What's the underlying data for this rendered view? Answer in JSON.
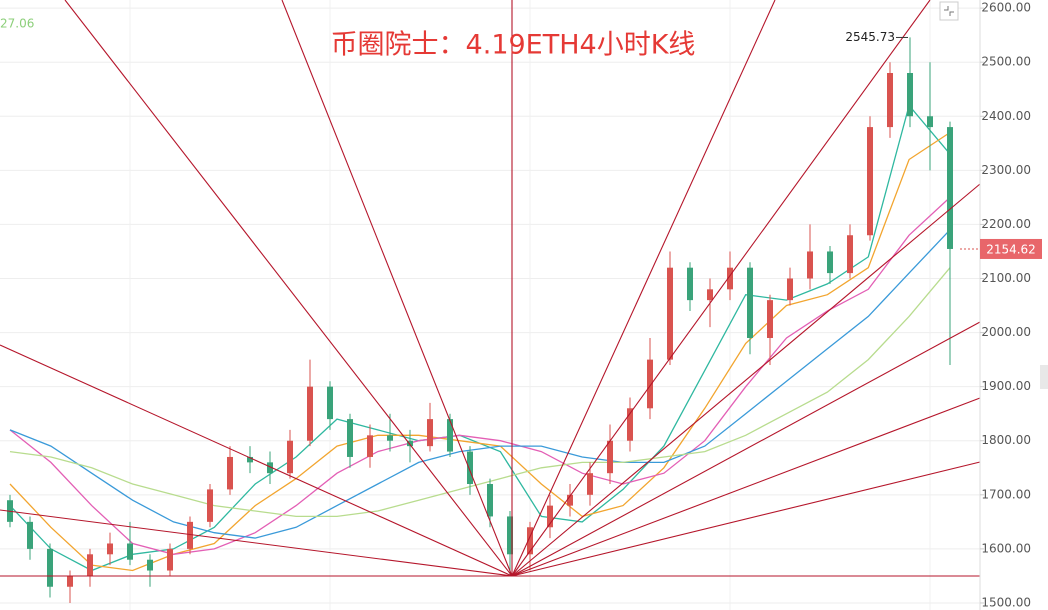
{
  "chart_data": {
    "type": "candlestick",
    "title": "币圈院士：4.19ETH4小时K线",
    "corner_label": "27.06",
    "high_annotation": 2545.73,
    "last_price": 2154.62,
    "ylim": [
      1487,
      2615
    ],
    "yticks": [
      {
        "value": 1500,
        "label": "1500.00"
      },
      {
        "value": 1600,
        "label": "1600.00"
      },
      {
        "value": 1700,
        "label": "1700.00"
      },
      {
        "value": 1800,
        "label": "1800.00"
      },
      {
        "value": 1900,
        "label": "1900.00"
      },
      {
        "value": 2000,
        "label": "2000.00"
      },
      {
        "value": 2100,
        "label": "2100.00"
      },
      {
        "value": 2200,
        "label": "2200.00"
      },
      {
        "value": 2300,
        "label": "2300.00"
      },
      {
        "value": 2400,
        "label": "2400.00"
      },
      {
        "value": 2500,
        "label": "2500.00"
      },
      {
        "value": 2600,
        "label": "2600.00"
      }
    ],
    "grid": true,
    "up_color": "#d9534f",
    "down_color": "#3aa37a",
    "candles": {
      "open": [
        1690,
        1650,
        1600,
        1530,
        1550,
        1590,
        1610,
        1580,
        1560,
        1600,
        1650,
        1710,
        1770,
        1760,
        1740,
        1800,
        1900,
        1840,
        1770,
        1810,
        1800,
        1790,
        1840,
        1780,
        1720,
        1660,
        1590,
        1640,
        1680,
        1700,
        1740,
        1800,
        1860,
        1950,
        2120,
        2060,
        2080,
        2120,
        1990,
        2060,
        2100,
        2150,
        2110,
        2180,
        2380,
        2480,
        2400,
        2380
      ],
      "high": [
        1700,
        1660,
        1610,
        1560,
        1600,
        1630,
        1650,
        1590,
        1610,
        1660,
        1720,
        1790,
        1790,
        1780,
        1820,
        1950,
        1910,
        1850,
        1830,
        1850,
        1820,
        1870,
        1850,
        1790,
        1730,
        1670,
        1650,
        1700,
        1720,
        1760,
        1830,
        1880,
        1990,
        2150,
        2130,
        2100,
        2150,
        2130,
        2070,
        2120,
        2200,
        2160,
        2200,
        2400,
        2500,
        2546,
        2500,
        2390
      ],
      "low": [
        1640,
        1580,
        1510,
        1500,
        1530,
        1570,
        1570,
        1530,
        1550,
        1590,
        1640,
        1700,
        1740,
        1720,
        1730,
        1790,
        1820,
        1750,
        1750,
        1780,
        1760,
        1780,
        1770,
        1700,
        1640,
        1550,
        1560,
        1620,
        1660,
        1680,
        1720,
        1780,
        1840,
        1940,
        2040,
        2010,
        2060,
        1960,
        1940,
        2050,
        2080,
        2090,
        2100,
        2170,
        2360,
        2380,
        2300,
        1940
      ],
      "close": [
        1650,
        1600,
        1530,
        1550,
        1590,
        1610,
        1580,
        1560,
        1600,
        1650,
        1710,
        1770,
        1760,
        1740,
        1800,
        1900,
        1840,
        1770,
        1810,
        1800,
        1790,
        1840,
        1780,
        1720,
        1660,
        1590,
        1640,
        1680,
        1700,
        1740,
        1800,
        1860,
        1950,
        2120,
        2060,
        2080,
        2120,
        1990,
        2060,
        2100,
        2150,
        2110,
        2180,
        2380,
        2480,
        2400,
        2380,
        2154.62
      ]
    },
    "series": [
      {
        "color": "#2fb8a0",
        "values": [
          1680,
          1600,
          1560,
          1590,
          1600,
          1640,
          1720,
          1770,
          1840,
          1820,
          1800,
          1810,
          1780,
          1660,
          1650,
          1710,
          1790,
          1930,
          2070,
          2060,
          2090,
          2140,
          2420,
          2330
        ]
      },
      {
        "color": "#f2a52f",
        "values": [
          1720,
          1640,
          1570,
          1560,
          1590,
          1610,
          1680,
          1730,
          1790,
          1810,
          1810,
          1800,
          1790,
          1720,
          1660,
          1680,
          1750,
          1860,
          1980,
          2050,
          2070,
          2120,
          2320,
          2370
        ]
      },
      {
        "color": "#e35fb5",
        "values": [
          1820,
          1760,
          1680,
          1610,
          1590,
          1600,
          1630,
          1680,
          1740,
          1780,
          1800,
          1810,
          1800,
          1780,
          1740,
          1720,
          1740,
          1800,
          1900,
          1990,
          2040,
          2080,
          2180,
          2250
        ]
      },
      {
        "color": "#3a9ad9",
        "values": [
          1820,
          1790,
          1740,
          1690,
          1650,
          1630,
          1620,
          1640,
          1680,
          1720,
          1760,
          1780,
          1790,
          1790,
          1770,
          1760,
          1760,
          1790,
          1850,
          1910,
          1970,
          2030,
          2110,
          2190
        ]
      },
      {
        "color": "#b8dc8e",
        "values": [
          1780,
          1770,
          1750,
          1720,
          1700,
          1680,
          1670,
          1660,
          1660,
          1670,
          1690,
          1710,
          1730,
          1750,
          1760,
          1760,
          1770,
          1780,
          1810,
          1850,
          1890,
          1950,
          2030,
          2120
        ]
      }
    ]
  }
}
